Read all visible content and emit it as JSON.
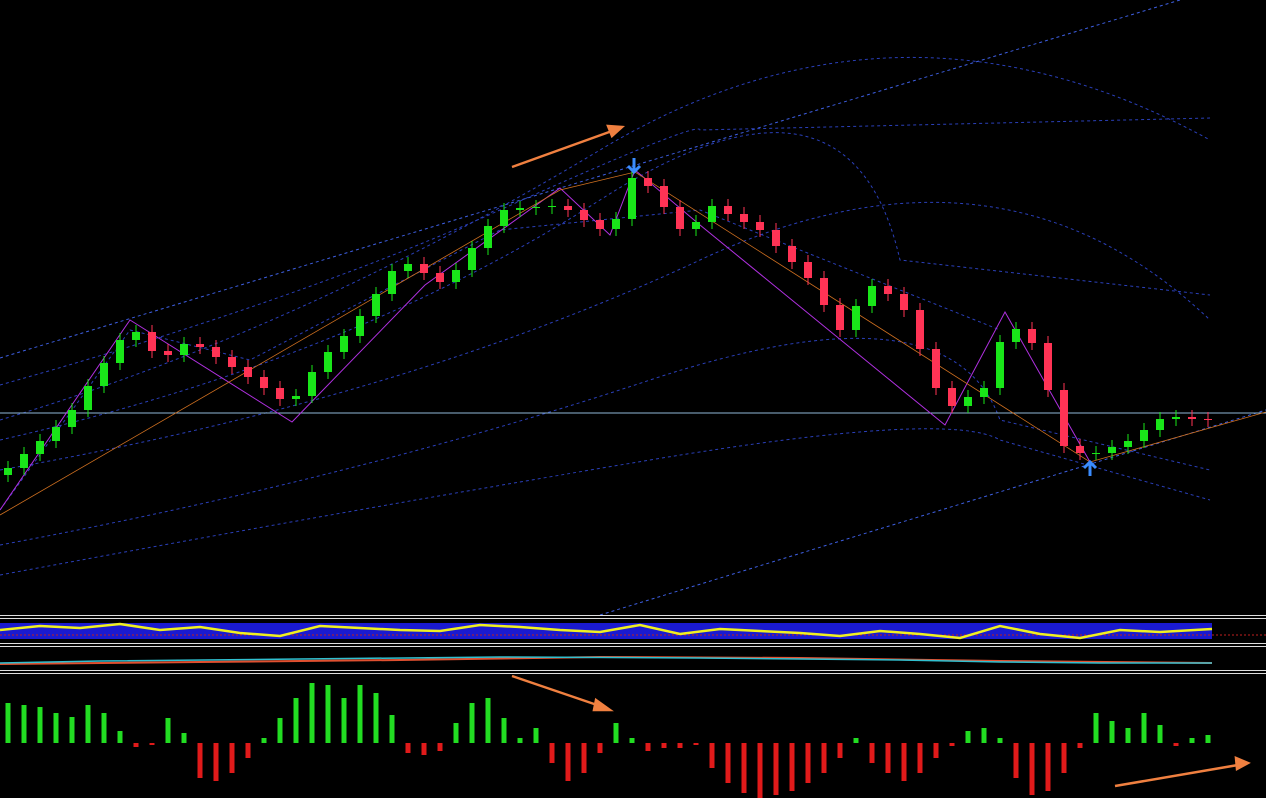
{
  "chart_data": [
    {
      "type": "candlestick",
      "ylim": [
        0,
        615
      ],
      "up_color": "#19e619",
      "down_color": "#ff3355",
      "open": [
        140,
        147,
        161,
        174,
        188,
        205,
        229,
        252,
        275,
        283,
        264,
        260,
        271,
        268,
        258,
        248,
        238,
        227,
        216,
        219,
        243,
        263,
        279,
        299,
        321,
        344,
        351,
        342,
        333,
        345,
        367,
        389,
        405,
        407,
        408,
        409,
        405,
        395,
        386,
        396,
        437,
        429,
        408,
        386,
        393,
        409,
        401,
        393,
        385,
        369,
        353,
        337,
        310,
        285,
        309,
        329,
        321,
        305,
        266,
        227,
        209,
        218,
        227,
        273,
        286,
        272,
        225,
        169,
        162,
        162,
        168,
        174,
        185,
        196,
        198,
        196
      ],
      "high": [
        154,
        168,
        181,
        195,
        212,
        236,
        259,
        282,
        290,
        290,
        271,
        278,
        278,
        275,
        265,
        255,
        245,
        234,
        226,
        250,
        270,
        286,
        306,
        328,
        351,
        358,
        358,
        349,
        352,
        374,
        396,
        412,
        414,
        415,
        416,
        416,
        412,
        402,
        403,
        444,
        444,
        436,
        415,
        400,
        416,
        416,
        408,
        400,
        392,
        376,
        360,
        344,
        317,
        316,
        336,
        336,
        328,
        312,
        273,
        234,
        225,
        234,
        280,
        293,
        293,
        279,
        232,
        176,
        169,
        175,
        181,
        192,
        203,
        205,
        205,
        203
      ],
      "low": [
        133,
        140,
        154,
        167,
        181,
        198,
        222,
        245,
        268,
        257,
        253,
        253,
        261,
        251,
        241,
        231,
        220,
        209,
        209,
        212,
        236,
        256,
        272,
        292,
        314,
        337,
        335,
        326,
        326,
        338,
        360,
        382,
        398,
        400,
        401,
        398,
        388,
        379,
        379,
        389,
        422,
        401,
        379,
        379,
        386,
        394,
        386,
        378,
        362,
        346,
        330,
        303,
        278,
        278,
        302,
        314,
        298,
        259,
        220,
        202,
        202,
        211,
        220,
        266,
        265,
        218,
        162,
        155,
        155,
        155,
        161,
        167,
        178,
        189,
        189,
        188
      ],
      "close": [
        147,
        161,
        174,
        188,
        205,
        229,
        252,
        275,
        283,
        264,
        260,
        271,
        268,
        258,
        248,
        238,
        227,
        216,
        219,
        243,
        263,
        279,
        299,
        321,
        344,
        351,
        342,
        333,
        345,
        367,
        389,
        405,
        407,
        408,
        409,
        405,
        395,
        386,
        396,
        437,
        429,
        408,
        386,
        393,
        409,
        401,
        393,
        385,
        369,
        353,
        337,
        310,
        285,
        309,
        329,
        321,
        305,
        266,
        227,
        209,
        218,
        227,
        273,
        286,
        272,
        225,
        169,
        162,
        162,
        168,
        174,
        185,
        196,
        198,
        196,
        195
      ]
    },
    {
      "type": "histogram",
      "ylim": [
        -55,
        68
      ],
      "up_color": "#22dd22",
      "down_color": "#e01a1a",
      "values": [
        40,
        38,
        36,
        30,
        26,
        38,
        30,
        12,
        -4,
        -2,
        25,
        10,
        -35,
        -38,
        -30,
        -15,
        5,
        25,
        45,
        60,
        58,
        45,
        58,
        50,
        28,
        -10,
        -12,
        -8,
        20,
        40,
        45,
        25,
        5,
        15,
        -20,
        -38,
        -30,
        -10,
        20,
        5,
        -8,
        -5,
        -5,
        -2,
        -25,
        -40,
        -50,
        -55,
        -52,
        -48,
        -40,
        -30,
        -15,
        5,
        -20,
        -30,
        -38,
        -30,
        -15,
        -3,
        12,
        15,
        5,
        -35,
        -52,
        -48,
        -30,
        -5,
        30,
        22,
        15,
        30,
        18,
        -3,
        5,
        8
      ]
    }
  ]
}
